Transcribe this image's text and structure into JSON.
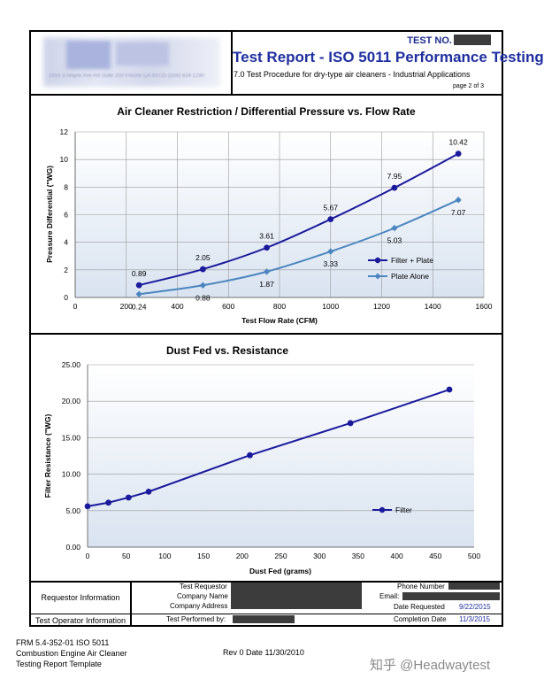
{
  "header": {
    "test_no_label": "TEST NO.",
    "title": "Test Report - ISO 5011 Performance Testing",
    "subtitle": "7.0  Test Procedure for dry-type air cleaners - Industrial Applications",
    "page_indicator": "page 2 of 3",
    "logo_caption": "2655 S.Maple Ave Rd Suite 200 Fresno CA 93725 (559) 834-2290"
  },
  "chart_data": [
    {
      "type": "line",
      "title": "Air Cleaner Restriction / Differential Pressure vs. Flow Rate",
      "xlabel": "Test Flow Rate (CFM)",
      "ylabel": "Pressure Differential (\"WG)",
      "xlim": [
        0,
        1600
      ],
      "ylim": [
        0,
        12
      ],
      "x_ticks": [
        "0",
        "200",
        "400",
        "600",
        "800",
        "1000",
        "1200",
        "1400",
        "1600"
      ],
      "y_ticks": [
        "0",
        "2",
        "4",
        "6",
        "8",
        "10",
        "12"
      ],
      "legend_position": "right",
      "series": [
        {
          "name": "Filter + Plate",
          "color": "#1a1a9c",
          "x": [
            250,
            500,
            750,
            1000,
            1250,
            1500
          ],
          "y": [
            0.89,
            2.05,
            3.61,
            5.67,
            7.95,
            10.42
          ],
          "labels": [
            "0.89",
            "2.05",
            "3.61",
            "5.67",
            "7.95",
            "10.42"
          ]
        },
        {
          "name": "Plate Alone",
          "color": "#4a86c0",
          "x": [
            250,
            500,
            750,
            1000,
            1250,
            1500
          ],
          "y": [
            0.24,
            0.88,
            1.87,
            3.33,
            5.03,
            7.07
          ],
          "labels": [
            "0.24",
            "0.88",
            "1.87",
            "3.33",
            "5.03",
            "7.07"
          ]
        }
      ]
    },
    {
      "type": "line",
      "title": "Dust Fed vs. Resistance",
      "xlabel": "Dust Fed (grams)",
      "ylabel": "Filter Resistance (\"WG)",
      "xlim": [
        0,
        500
      ],
      "ylim": [
        0,
        25
      ],
      "x_ticks": [
        "0",
        "50",
        "100",
        "150",
        "200",
        "250",
        "300",
        "350",
        "400",
        "450",
        "500"
      ],
      "y_ticks": [
        "0.00",
        "5.00",
        "10.00",
        "15.00",
        "20.00",
        "25.00"
      ],
      "legend_position": "right",
      "series": [
        {
          "name": "Filter",
          "color": "#1a1a9c",
          "x": [
            0,
            27,
            53,
            79,
            210,
            340,
            468
          ],
          "y": [
            5.6,
            6.1,
            6.8,
            7.6,
            12.6,
            17.0,
            21.6
          ]
        }
      ]
    }
  ],
  "info": {
    "requestor_label": "Requestor Information",
    "operator_label": "Test Operator Information",
    "test_requestor": "Test Requestor",
    "company_name": "Company Name",
    "company_address": "Company Address",
    "test_performed_by": "Test Performed by:",
    "phone_number": "Phone Number",
    "email": "Email:",
    "date_requested_label": "Date Requested",
    "date_requested": "9/22/2015",
    "completion_date_label": "Completion Date",
    "completion_date": "11/3/2015"
  },
  "footer": {
    "line1": "FRM 5.4-352-01 ISO 5011",
    "line2": "Combustion Engine Air Cleaner",
    "line3": "Testing Report Template",
    "revision": "Rev 0 Date 11/30/2010",
    "watermark": "知乎 @Headwaytest"
  }
}
